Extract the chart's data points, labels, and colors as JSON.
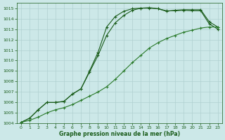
{
  "bg_color": "#cce8e8",
  "grid_color": "#b0d0d0",
  "line_color_dark": "#1a5c1a",
  "line_color_mid": "#2a7a2a",
  "xlabel": "Graphe pression niveau de la mer (hPa)",
  "xlabel_color": "#1a5c1a",
  "ylim": [
    1004,
    1015.5
  ],
  "xlim": [
    -0.5,
    23.5
  ],
  "yticks": [
    1004,
    1005,
    1006,
    1007,
    1008,
    1009,
    1010,
    1011,
    1012,
    1013,
    1014,
    1015
  ],
  "xticks": [
    0,
    1,
    2,
    3,
    4,
    5,
    6,
    7,
    8,
    9,
    10,
    11,
    12,
    13,
    14,
    15,
    16,
    17,
    18,
    19,
    20,
    21,
    22,
    23
  ],
  "series1": [
    1004.1,
    1004.5,
    1005.3,
    1006.0,
    1006.0,
    1006.1,
    1006.8,
    1007.3,
    1009.0,
    1010.8,
    1013.2,
    1014.2,
    1014.7,
    1014.95,
    1015.0,
    1015.0,
    1014.95,
    1014.7,
    1014.8,
    1014.85,
    1014.85,
    1014.85,
    1013.7,
    1013.2
  ],
  "series2": [
    1004.1,
    1004.5,
    1005.3,
    1006.0,
    1006.0,
    1006.1,
    1006.8,
    1007.3,
    1008.9,
    1010.5,
    1012.4,
    1013.6,
    1014.3,
    1014.8,
    1015.0,
    1015.05,
    1014.95,
    1014.75,
    1014.75,
    1014.8,
    1014.75,
    1014.75,
    1013.5,
    1013.0
  ],
  "series3": [
    1004.1,
    1004.3,
    1004.6,
    1005.0,
    1005.3,
    1005.5,
    1005.8,
    1006.2,
    1006.6,
    1007.0,
    1007.5,
    1008.2,
    1009.0,
    1009.8,
    1010.5,
    1011.2,
    1011.7,
    1012.1,
    1012.4,
    1012.7,
    1012.9,
    1013.1,
    1013.2,
    1013.2
  ]
}
